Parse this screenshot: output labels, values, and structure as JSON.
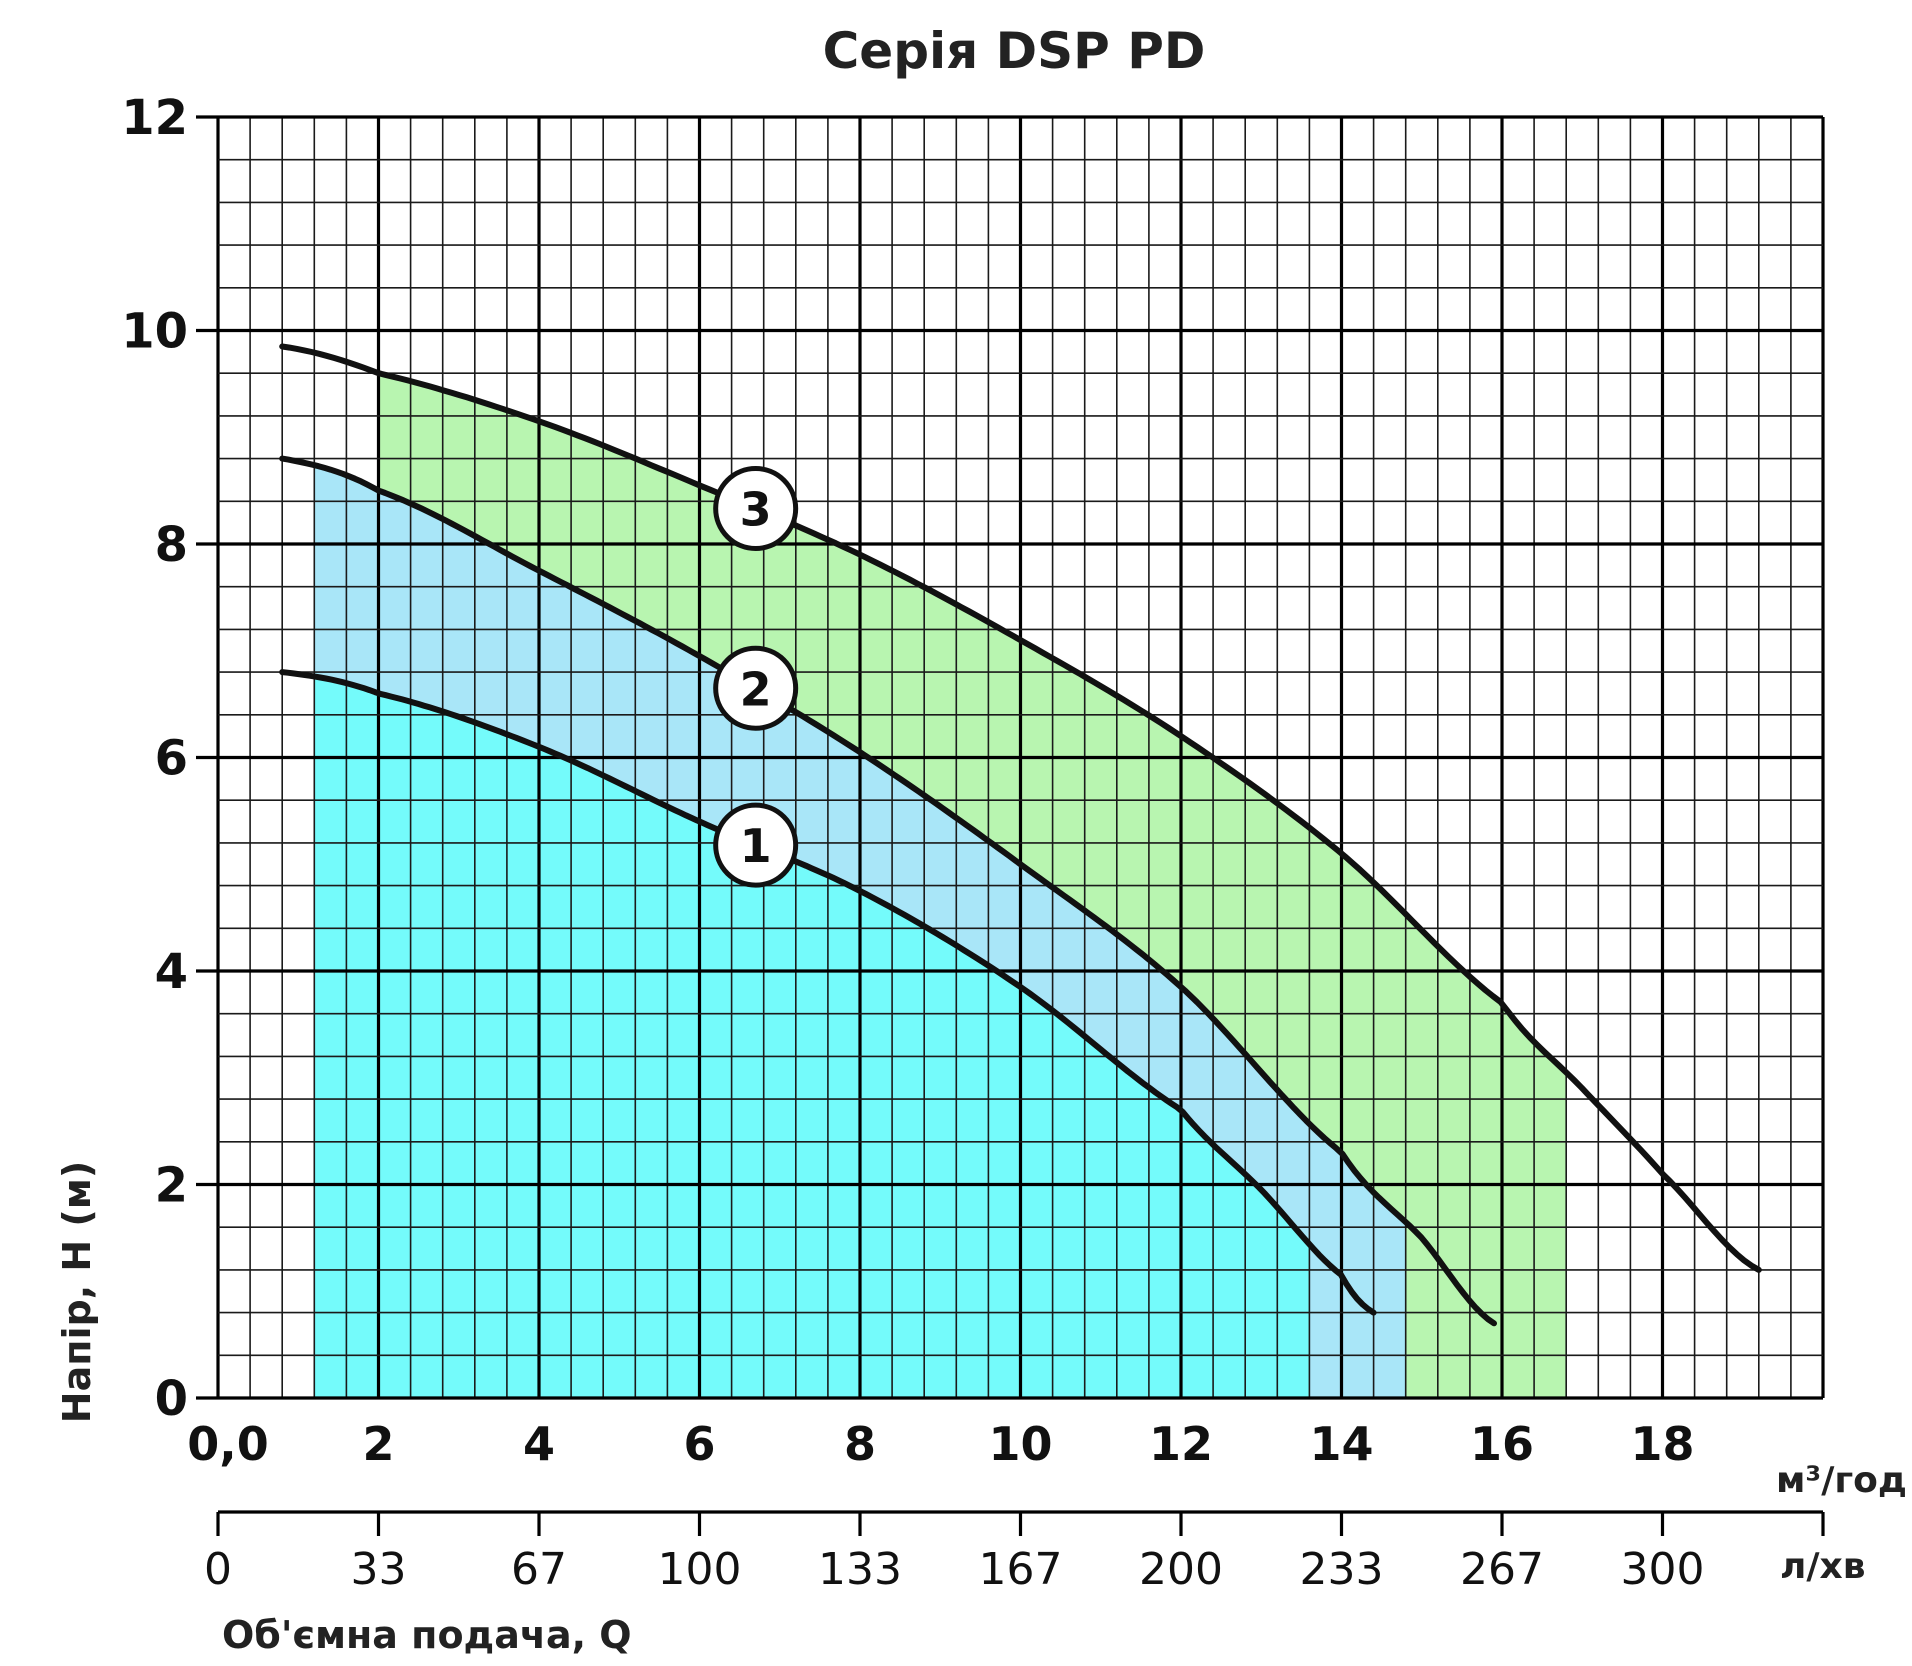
{
  "chart_data": {
    "type": "line",
    "title": "Серія DSP PD",
    "ylabel": "Напір, H (м)",
    "xlabel": "Об'ємна подача, Q",
    "xunit_primary": "м³/год",
    "xunit_secondary": "л/хв",
    "xlim": [
      0,
      20
    ],
    "ylim": [
      0,
      12
    ],
    "y_ticks": [
      "0",
      "2",
      "4",
      "6",
      "8",
      "10",
      "12"
    ],
    "x_ticks_primary": [
      {
        "value": 0,
        "label": "0,0"
      },
      {
        "value": 2,
        "label": "2"
      },
      {
        "value": 4,
        "label": "4"
      },
      {
        "value": 6,
        "label": "6"
      },
      {
        "value": 8,
        "label": "8"
      },
      {
        "value": 10,
        "label": "10"
      },
      {
        "value": 12,
        "label": "12"
      },
      {
        "value": 14,
        "label": "14"
      },
      {
        "value": 16,
        "label": "16"
      },
      {
        "value": 18,
        "label": "18"
      }
    ],
    "x_ticks_secondary": [
      {
        "value": 0,
        "label": "0"
      },
      {
        "value": 2,
        "label": "33"
      },
      {
        "value": 4,
        "label": "67"
      },
      {
        "value": 6,
        "label": "100"
      },
      {
        "value": 8,
        "label": "133"
      },
      {
        "value": 10,
        "label": "167"
      },
      {
        "value": 12,
        "label": "200"
      },
      {
        "value": 14,
        "label": "233"
      },
      {
        "value": 16,
        "label": "267"
      },
      {
        "value": 18,
        "label": "300"
      }
    ],
    "grid": true,
    "series": [
      {
        "name": "1",
        "badge_at": 6.7,
        "fill_color": "#74fbfb",
        "band_x": [
          1.2,
          13.6
        ],
        "x": [
          0.8,
          2.0,
          4.0,
          6.0,
          8.0,
          10.0,
          12.0,
          13.0,
          14.0,
          14.4
        ],
        "y": [
          6.8,
          6.6,
          6.1,
          5.4,
          4.75,
          3.85,
          2.7,
          1.95,
          1.15,
          0.8
        ]
      },
      {
        "name": "2",
        "badge_at": 6.7,
        "fill_color": "#a9e6f8",
        "band_x": [
          1.2,
          14.8
        ],
        "x": [
          0.8,
          2.0,
          4.0,
          6.0,
          8.0,
          10.0,
          12.0,
          14.0,
          15.0,
          15.9
        ],
        "y": [
          8.8,
          8.5,
          7.75,
          6.95,
          6.05,
          5.0,
          3.85,
          2.3,
          1.5,
          0.7
        ]
      },
      {
        "name": "3",
        "badge_at": 6.7,
        "fill_color": "#b8f5b0",
        "band_x": [
          2.0,
          16.8
        ],
        "x": [
          0.8,
          2.0,
          4.0,
          6.0,
          8.0,
          10.0,
          12.0,
          14.0,
          16.0,
          17.0,
          18.0,
          19.2
        ],
        "y": [
          9.85,
          9.6,
          9.15,
          8.55,
          7.9,
          7.1,
          6.2,
          5.1,
          3.7,
          2.9,
          2.1,
          1.2
        ]
      }
    ]
  },
  "colors": {
    "grid_minor": "#1a1a1a",
    "grid_major": "#000000",
    "curve": "#111111"
  }
}
